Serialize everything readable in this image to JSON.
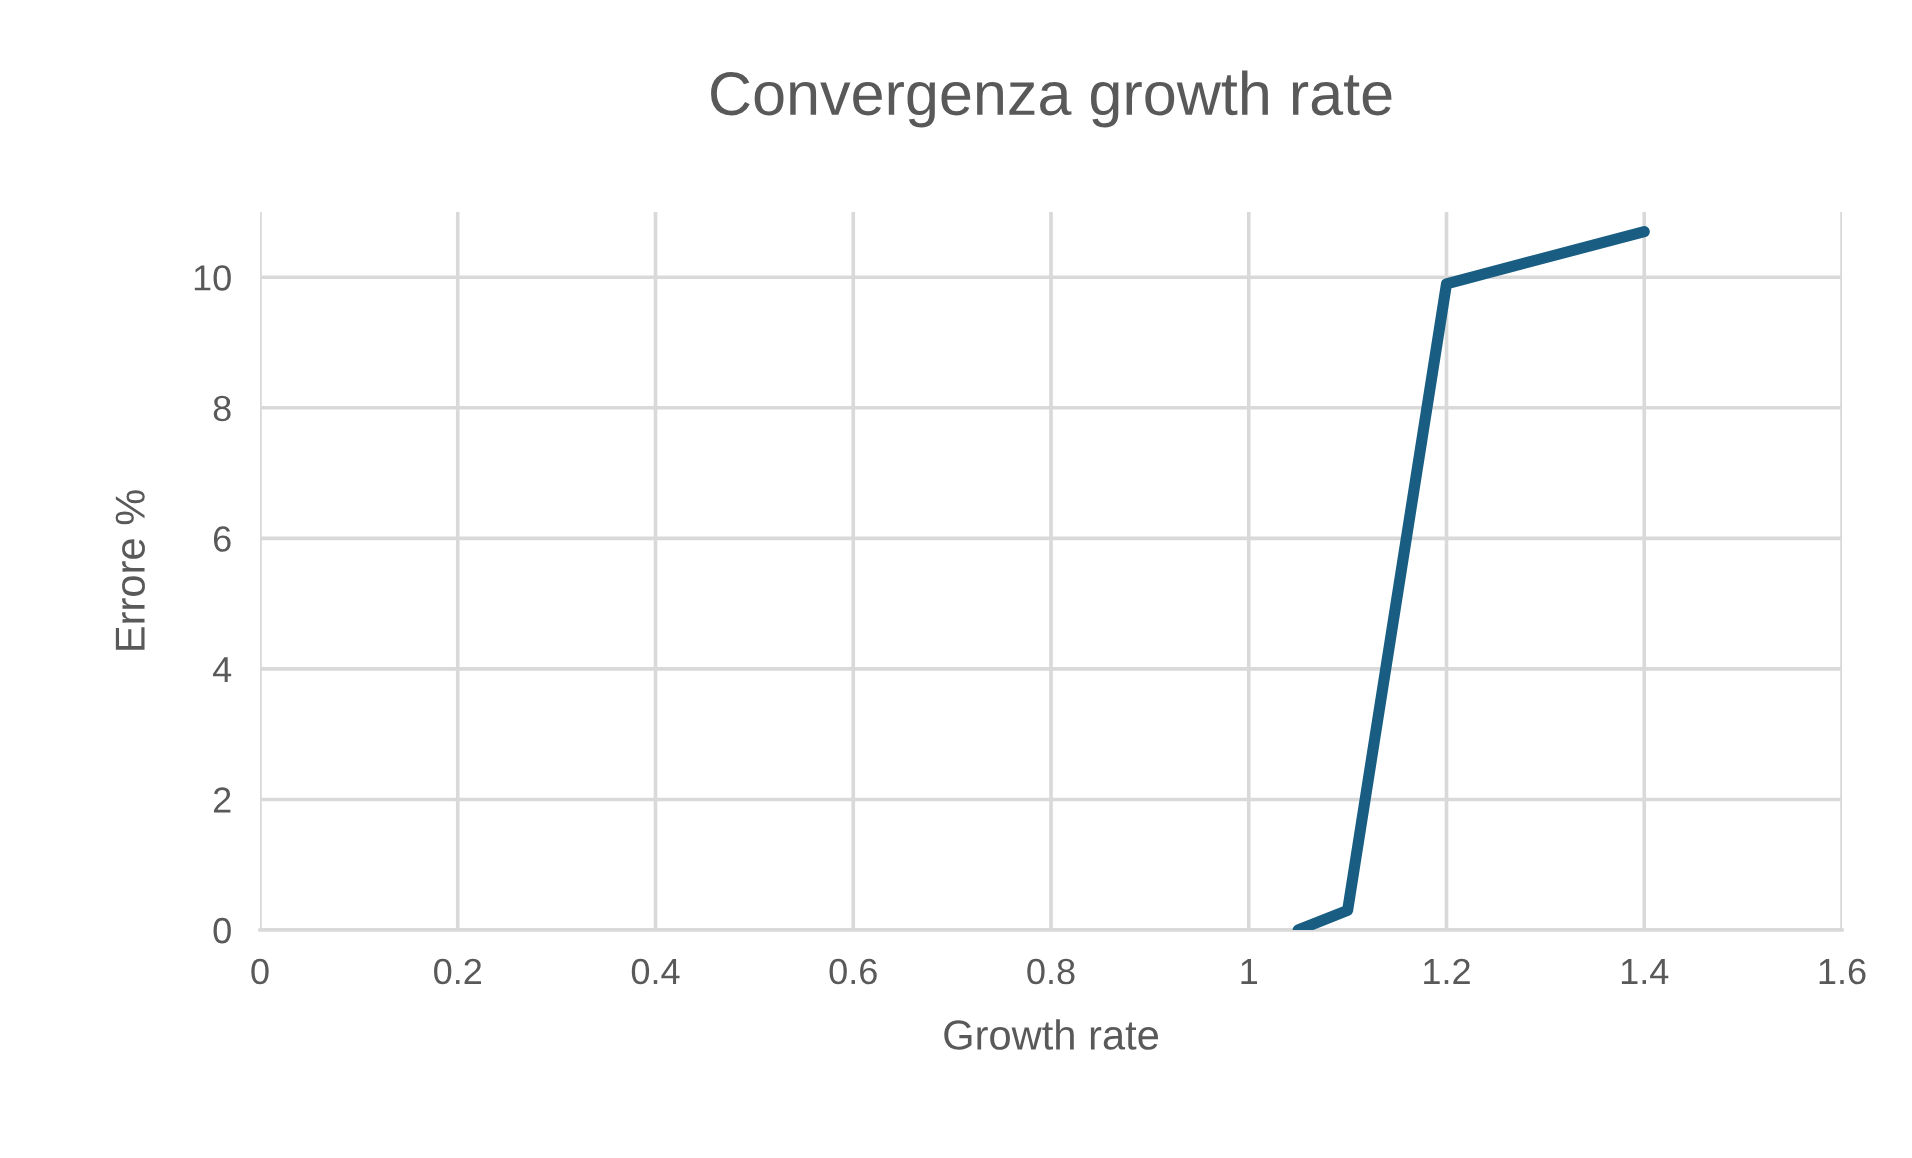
{
  "chart_data": {
    "type": "line",
    "title": "Convergenza growth rate",
    "xlabel": "Growth rate",
    "ylabel": "Errore %",
    "x": [
      1.05,
      1.1,
      1.2,
      1.4
    ],
    "series": [
      {
        "color": "#195e82",
        "values": [
          0,
          0.3,
          9.9,
          10.7
        ]
      }
    ],
    "xlim": [
      0,
      1.6
    ],
    "xticks": [
      0,
      0.2,
      0.4,
      0.6,
      0.8,
      1,
      1.2,
      1.4,
      1.6
    ],
    "ylim": [
      0,
      11
    ],
    "yticks": [
      0,
      2,
      4,
      6,
      8,
      10
    ],
    "grid": true,
    "line_style": "solid"
  }
}
